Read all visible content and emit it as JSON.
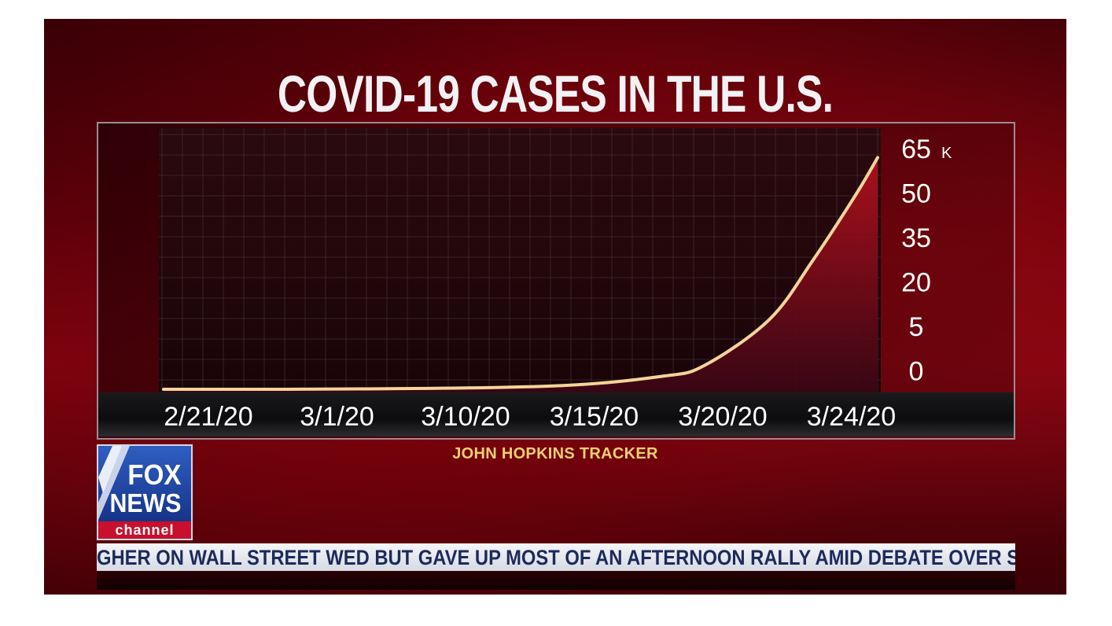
{
  "title": "COVID-19 CASES IN THE U.S.",
  "source": "JOHN HOPKINS TRACKER",
  "logo": {
    "line1": "FOX",
    "line2": "NEWS",
    "line3": "channel"
  },
  "ticker": {
    "text": "GHER ON WALL STREET WED BUT GAVE UP MOST OF AN AFTERNOON RALLY AMID DEBATE OVER SENATE C"
  },
  "colors": {
    "line": "#f3d49a",
    "area_top": "#b0101c",
    "area_bottom": "#3a0614",
    "source_text": "#f0cf73"
  },
  "chart_data": {
    "type": "area",
    "title": "COVID-19 CASES IN THE U.S.",
    "xlabel": "",
    "ylabel": "",
    "y_unit_suffix": "K",
    "x_tick_labels": [
      "2/21/20",
      "3/1/20",
      "3/10/20",
      "3/15/20",
      "3/20/20",
      "3/24/20"
    ],
    "y_tick_labels": [
      "0",
      "5",
      "20",
      "35",
      "50",
      "65"
    ],
    "ylim": [
      0,
      65
    ],
    "grid": true,
    "legend": "none",
    "series": [
      {
        "points": [
          {
            "x": "2/21/20",
            "y": 0.0
          },
          {
            "x": "3/1/20",
            "y": 0.1
          },
          {
            "x": "3/10/20",
            "y": 0.9
          },
          {
            "x": "3/15/20",
            "y": 3.5
          },
          {
            "x": "3/17/20",
            "y": 6.5
          },
          {
            "x": "3/20/20",
            "y": 19.0
          },
          {
            "x": "3/22/20",
            "y": 35.0
          },
          {
            "x": "3/24/20",
            "y": 53.0
          },
          {
            "x": "3/25/20",
            "y": 63.0
          }
        ]
      }
    ]
  }
}
